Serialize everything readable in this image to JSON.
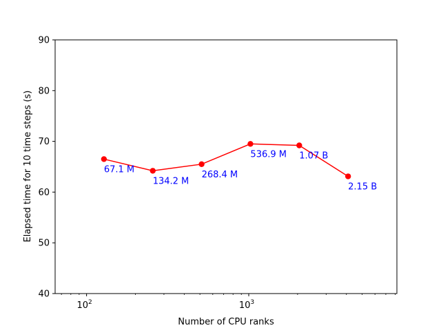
{
  "chart_data": {
    "type": "line",
    "title": "",
    "xlabel": "Number of CPU ranks",
    "ylabel": "Elapsed time for 10 time steps (s)",
    "xscale": "log",
    "xlim": [
      64,
      8192
    ],
    "ylim": [
      40,
      90
    ],
    "grid": false,
    "x_ticks": [
      {
        "value": 100,
        "base": "10",
        "exp": "2"
      },
      {
        "value": 1000,
        "base": "10",
        "exp": "3"
      }
    ],
    "y_ticks": [
      40,
      50,
      60,
      70,
      80,
      90
    ],
    "series": [
      {
        "color": "#ff0000",
        "marker": "circle",
        "x": [
          128,
          256,
          512,
          1024,
          2048,
          4096
        ],
        "y": [
          66.5,
          64.2,
          65.5,
          69.5,
          69.2,
          63.1
        ],
        "labels": [
          "67.1 M",
          "134.2 M",
          "268.4 M",
          "536.9 M",
          "1.07 B",
          "2.15 B"
        ]
      }
    ],
    "label_color": "#0000ff"
  }
}
